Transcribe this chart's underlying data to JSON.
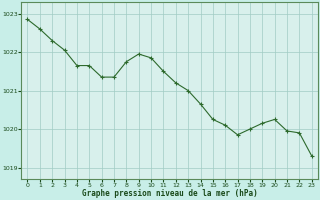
{
  "x": [
    0,
    1,
    2,
    3,
    4,
    5,
    6,
    7,
    8,
    9,
    10,
    11,
    12,
    13,
    14,
    15,
    16,
    17,
    18,
    19,
    20,
    21,
    22,
    23
  ],
  "y": [
    1022.85,
    1022.6,
    1022.3,
    1022.05,
    1021.65,
    1021.65,
    1021.35,
    1021.35,
    1021.75,
    1021.95,
    1021.85,
    1021.5,
    1021.2,
    1021.0,
    1020.65,
    1020.25,
    1020.1,
    1019.85,
    1020.0,
    1020.15,
    1020.25,
    1019.95,
    1019.9,
    1019.3
  ],
  "line_color": "#2d6a2d",
  "marker": "+",
  "marker_size": 3,
  "background_color": "#c8eee8",
  "grid_color": "#a0ccc4",
  "plot_bg": "#d8f0ec",
  "ylim": [
    1018.7,
    1023.3
  ],
  "xlim": [
    -0.5,
    23.5
  ],
  "yticks": [
    1019,
    1020,
    1021,
    1022,
    1023
  ],
  "xticks": [
    0,
    1,
    2,
    3,
    4,
    5,
    6,
    7,
    8,
    9,
    10,
    11,
    12,
    13,
    14,
    15,
    16,
    17,
    18,
    19,
    20,
    21,
    22,
    23
  ],
  "xlabel": "Graphe pression niveau de la mer (hPa)",
  "xlabel_color": "#1a4a1a",
  "tick_color": "#1a4a1a",
  "spine_color": "#5a8a5a"
}
